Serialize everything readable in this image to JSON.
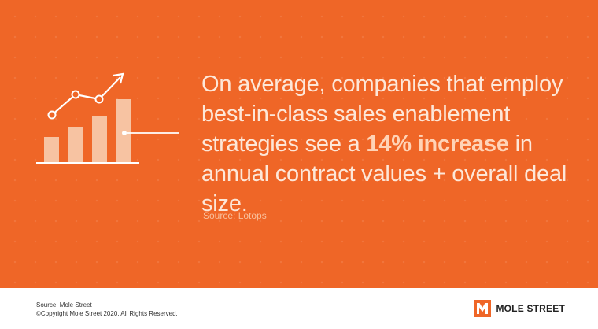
{
  "headline": {
    "part1": "On average, companies that employ best-in-class sales enablement strategies see a ",
    "highlight": "14% increase",
    "part2": " in annual contract values + overall deal size."
  },
  "source": "Source: Lotops",
  "footer": {
    "source": "Source: Mole Street",
    "copyright": "©Copyright Mole Street 2020. All Rights Reserved."
  },
  "brand": {
    "name": "MOLE STREET"
  },
  "colors": {
    "background": "#ef6627",
    "accent_text": "#ffd3b6",
    "body_text": "#fde7d8"
  },
  "icons": [
    "bar-chart-growth-icon",
    "mole-street-logo-icon"
  ]
}
